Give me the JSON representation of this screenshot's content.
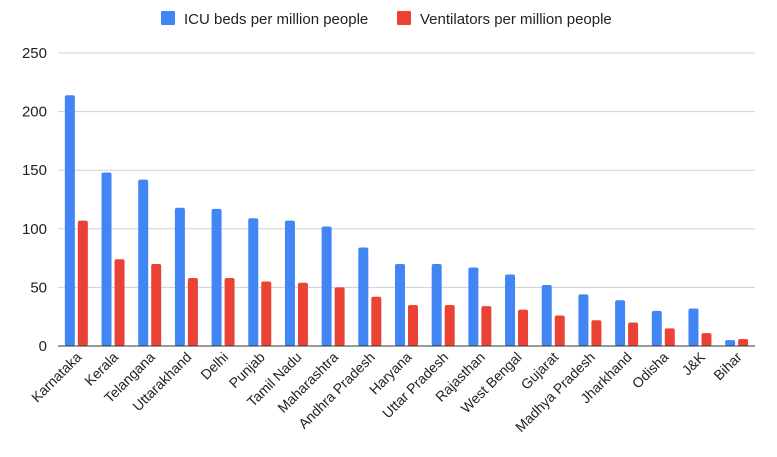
{
  "chart_data": {
    "type": "bar",
    "title": "",
    "xlabel": "",
    "ylabel": "",
    "ylim": [
      0,
      250
    ],
    "yticks": [
      0,
      50,
      100,
      150,
      200,
      250
    ],
    "grid": true,
    "legend_position": "top",
    "categories": [
      "Karnataka",
      "Kerala",
      "Telangana",
      "Uttarakhand",
      "Delhi",
      "Punjab",
      "Tamil Nadu",
      "Maharashtra",
      "Andhra Pradesh",
      "Haryana",
      "Uttar Pradesh",
      "Rajasthan",
      "West Bengal",
      "Gujarat",
      "Madhya Pradesh",
      "Jharkhand",
      "Odisha",
      "J&K",
      "Bihar"
    ],
    "series": [
      {
        "name": "ICU beds per million people",
        "color": "#4285F4",
        "values": [
          214,
          148,
          142,
          118,
          117,
          109,
          107,
          102,
          84,
          70,
          70,
          67,
          61,
          52,
          44,
          39,
          30,
          32,
          5
        ]
      },
      {
        "name": "Ventilators per million people",
        "color": "#EA4335",
        "values": [
          107,
          74,
          70,
          58,
          58,
          55,
          54,
          50,
          42,
          35,
          35,
          34,
          31,
          26,
          22,
          20,
          15,
          11,
          6
        ]
      }
    ]
  }
}
